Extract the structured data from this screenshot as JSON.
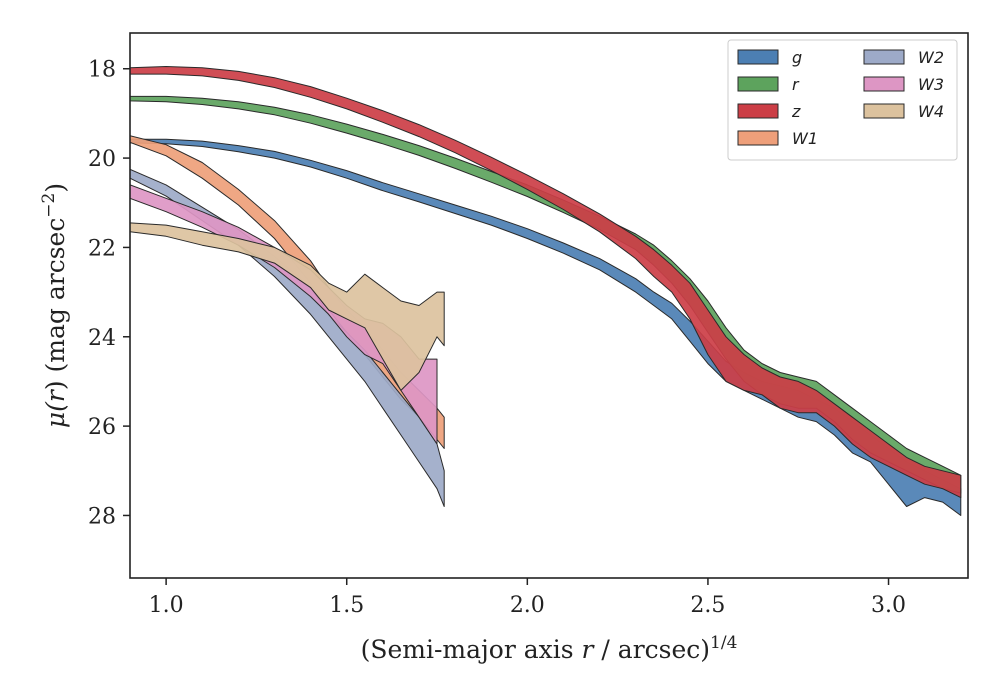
{
  "chart_data": {
    "type": "area",
    "xlabel": "(Semi-major axis r / arcsec)1/4",
    "ylabel": "μ(r) (mag arcsec−2)",
    "xlabel_parts": {
      "prefix": "(Semi-major axis ",
      "var": "r",
      "mid": " / arcsec)",
      "sup": "1/4"
    },
    "ylabel_parts": {
      "mu": "μ(",
      "var": "r",
      "mid": ") (mag arcsec",
      "sup": "−2",
      "end": ")"
    },
    "xlim": [
      0.9,
      3.22
    ],
    "ylim": [
      29.4,
      17.2
    ],
    "y_inverted": true,
    "xticks": [
      1.0,
      1.5,
      2.0,
      2.5,
      3.0
    ],
    "xtick_labels": [
      "1.0",
      "1.5",
      "2.0",
      "2.5",
      "3.0"
    ],
    "yticks": [
      18,
      20,
      22,
      24,
      26,
      28
    ],
    "ytick_labels": [
      "18",
      "20",
      "22",
      "24",
      "26",
      "28"
    ],
    "grid": false,
    "legend_position": "top-right",
    "legend_columns": 2,
    "series": [
      {
        "name": "g",
        "color": "#4c7fb3",
        "points": [
          [
            0.9,
            19.58,
            19.66
          ],
          [
            1.0,
            19.58,
            19.68
          ],
          [
            1.1,
            19.62,
            19.74
          ],
          [
            1.2,
            19.72,
            19.86
          ],
          [
            1.3,
            19.85,
            20.0
          ],
          [
            1.4,
            20.05,
            20.2
          ],
          [
            1.5,
            20.28,
            20.45
          ],
          [
            1.6,
            20.55,
            20.73
          ],
          [
            1.7,
            20.8,
            20.98
          ],
          [
            1.8,
            21.05,
            21.24
          ],
          [
            1.9,
            21.3,
            21.5
          ],
          [
            2.0,
            21.58,
            21.8
          ],
          [
            2.1,
            21.9,
            22.13
          ],
          [
            2.2,
            22.25,
            22.5
          ],
          [
            2.3,
            22.7,
            23.0
          ],
          [
            2.35,
            23.0,
            23.3
          ],
          [
            2.4,
            23.25,
            23.6
          ],
          [
            2.45,
            23.65,
            24.1
          ],
          [
            2.5,
            24.1,
            24.6
          ],
          [
            2.55,
            24.55,
            25.0
          ],
          [
            2.6,
            24.8,
            25.2
          ],
          [
            2.65,
            25.0,
            25.4
          ],
          [
            2.7,
            25.1,
            25.6
          ],
          [
            2.75,
            25.2,
            25.8
          ],
          [
            2.8,
            25.4,
            25.9
          ],
          [
            2.85,
            25.6,
            26.2
          ],
          [
            2.9,
            25.9,
            26.6
          ],
          [
            2.95,
            26.2,
            26.8
          ],
          [
            3.0,
            26.5,
            27.3
          ],
          [
            3.05,
            26.8,
            27.8
          ],
          [
            3.1,
            27.0,
            27.6
          ],
          [
            3.15,
            27.2,
            27.7
          ],
          [
            3.2,
            27.4,
            28.0
          ]
        ]
      },
      {
        "name": "r",
        "color": "#5da35d",
        "points": [
          [
            0.9,
            18.62,
            18.72
          ],
          [
            1.0,
            18.62,
            18.74
          ],
          [
            1.1,
            18.66,
            18.8
          ],
          [
            1.2,
            18.74,
            18.9
          ],
          [
            1.3,
            18.86,
            19.03
          ],
          [
            1.4,
            19.03,
            19.22
          ],
          [
            1.5,
            19.24,
            19.44
          ],
          [
            1.6,
            19.47,
            19.68
          ],
          [
            1.7,
            19.72,
            19.94
          ],
          [
            1.8,
            20.0,
            20.23
          ],
          [
            1.9,
            20.3,
            20.54
          ],
          [
            2.0,
            20.6,
            20.86
          ],
          [
            2.1,
            20.94,
            21.22
          ],
          [
            2.2,
            21.3,
            21.6
          ],
          [
            2.3,
            21.7,
            22.05
          ],
          [
            2.35,
            21.95,
            22.4
          ],
          [
            2.4,
            22.3,
            22.8
          ],
          [
            2.45,
            22.7,
            23.3
          ],
          [
            2.5,
            23.2,
            23.9
          ],
          [
            2.55,
            23.8,
            24.5
          ],
          [
            2.6,
            24.3,
            25.0
          ],
          [
            2.65,
            24.6,
            25.3
          ],
          [
            2.7,
            24.8,
            25.5
          ],
          [
            2.75,
            24.9,
            25.6
          ],
          [
            2.8,
            25.0,
            25.6
          ],
          [
            2.85,
            25.3,
            25.9
          ],
          [
            2.9,
            25.6,
            26.3
          ],
          [
            2.95,
            25.9,
            26.6
          ],
          [
            3.0,
            26.2,
            26.8
          ],
          [
            3.05,
            26.5,
            27.0
          ],
          [
            3.1,
            26.7,
            27.2
          ],
          [
            3.15,
            26.9,
            27.4
          ],
          [
            3.2,
            27.1,
            27.5
          ]
        ]
      },
      {
        "name": "z",
        "color": "#cc3e46",
        "points": [
          [
            0.9,
            17.98,
            18.12
          ],
          [
            1.0,
            17.95,
            18.12
          ],
          [
            1.1,
            17.98,
            18.16
          ],
          [
            1.2,
            18.06,
            18.26
          ],
          [
            1.3,
            18.2,
            18.42
          ],
          [
            1.4,
            18.4,
            18.64
          ],
          [
            1.5,
            18.66,
            18.9
          ],
          [
            1.6,
            18.94,
            19.2
          ],
          [
            1.7,
            19.25,
            19.52
          ],
          [
            1.8,
            19.6,
            19.88
          ],
          [
            1.9,
            19.98,
            20.28
          ],
          [
            2.0,
            20.38,
            20.7
          ],
          [
            2.1,
            20.8,
            21.15
          ],
          [
            2.2,
            21.25,
            21.65
          ],
          [
            2.3,
            21.75,
            22.25
          ],
          [
            2.35,
            22.05,
            22.65
          ],
          [
            2.4,
            22.4,
            23.0
          ],
          [
            2.45,
            22.8,
            23.6
          ],
          [
            2.5,
            23.4,
            24.4
          ],
          [
            2.55,
            24.0,
            25.0
          ],
          [
            2.6,
            24.4,
            25.2
          ],
          [
            2.65,
            24.7,
            25.3
          ],
          [
            2.7,
            24.9,
            25.6
          ],
          [
            2.75,
            25.0,
            25.7
          ],
          [
            2.8,
            25.2,
            25.7
          ],
          [
            2.85,
            25.5,
            26.0
          ],
          [
            2.9,
            25.8,
            26.4
          ],
          [
            2.95,
            26.1,
            26.7
          ],
          [
            3.0,
            26.4,
            26.9
          ],
          [
            3.05,
            26.7,
            27.1
          ],
          [
            3.1,
            26.9,
            27.3
          ],
          [
            3.15,
            27.0,
            27.4
          ],
          [
            3.2,
            27.1,
            27.6
          ]
        ]
      },
      {
        "name": "W1",
        "color": "#ee9f7a",
        "points": [
          [
            0.9,
            19.5,
            19.65
          ],
          [
            1.0,
            19.7,
            19.95
          ],
          [
            1.1,
            20.1,
            20.45
          ],
          [
            1.2,
            20.7,
            21.05
          ],
          [
            1.3,
            21.4,
            21.8
          ],
          [
            1.4,
            22.3,
            22.8
          ],
          [
            1.45,
            22.9,
            23.4
          ],
          [
            1.5,
            23.4,
            23.9
          ],
          [
            1.55,
            23.8,
            24.4
          ],
          [
            1.6,
            24.3,
            24.9
          ],
          [
            1.65,
            24.8,
            25.4
          ],
          [
            1.7,
            25.2,
            25.8
          ],
          [
            1.75,
            25.6,
            26.3
          ],
          [
            1.77,
            25.8,
            26.5
          ]
        ]
      },
      {
        "name": "W2",
        "color": "#9daac8",
        "points": [
          [
            0.9,
            20.25,
            20.45
          ],
          [
            1.0,
            20.6,
            20.85
          ],
          [
            1.1,
            21.1,
            21.4
          ],
          [
            1.2,
            21.6,
            21.95
          ],
          [
            1.3,
            22.2,
            22.65
          ],
          [
            1.4,
            22.9,
            23.5
          ],
          [
            1.45,
            23.5,
            24.0
          ],
          [
            1.5,
            23.9,
            24.5
          ],
          [
            1.55,
            24.3,
            25.0
          ],
          [
            1.6,
            24.8,
            25.6
          ],
          [
            1.65,
            25.3,
            26.2
          ],
          [
            1.7,
            25.8,
            26.8
          ],
          [
            1.75,
            26.4,
            27.4
          ],
          [
            1.77,
            27.0,
            27.8
          ]
        ]
      },
      {
        "name": "W3",
        "color": "#dd96c4",
        "points": [
          [
            0.9,
            20.6,
            20.9
          ],
          [
            1.0,
            20.9,
            21.2
          ],
          [
            1.1,
            21.2,
            21.55
          ],
          [
            1.2,
            21.55,
            21.95
          ],
          [
            1.3,
            22.0,
            22.45
          ],
          [
            1.4,
            22.5,
            23.1
          ],
          [
            1.45,
            22.9,
            23.5
          ],
          [
            1.5,
            23.3,
            24.0
          ],
          [
            1.55,
            23.6,
            24.4
          ],
          [
            1.6,
            23.7,
            24.6
          ],
          [
            1.65,
            24.0,
            25.2
          ],
          [
            1.7,
            24.5,
            25.8
          ],
          [
            1.75,
            24.5,
            26.4
          ]
        ]
      },
      {
        "name": "W4",
        "color": "#dcc29e",
        "points": [
          [
            0.9,
            21.45,
            21.65
          ],
          [
            1.0,
            21.5,
            21.75
          ],
          [
            1.1,
            21.65,
            21.95
          ],
          [
            1.2,
            21.8,
            22.1
          ],
          [
            1.3,
            22.0,
            22.35
          ],
          [
            1.4,
            22.4,
            22.9
          ],
          [
            1.45,
            22.8,
            23.4
          ],
          [
            1.5,
            23.0,
            23.6
          ],
          [
            1.55,
            22.6,
            23.8
          ],
          [
            1.6,
            22.9,
            24.5
          ],
          [
            1.65,
            23.2,
            25.2
          ],
          [
            1.7,
            23.3,
            24.8
          ],
          [
            1.75,
            23.0,
            24.0
          ],
          [
            1.77,
            23.0,
            24.2
          ]
        ]
      }
    ]
  }
}
